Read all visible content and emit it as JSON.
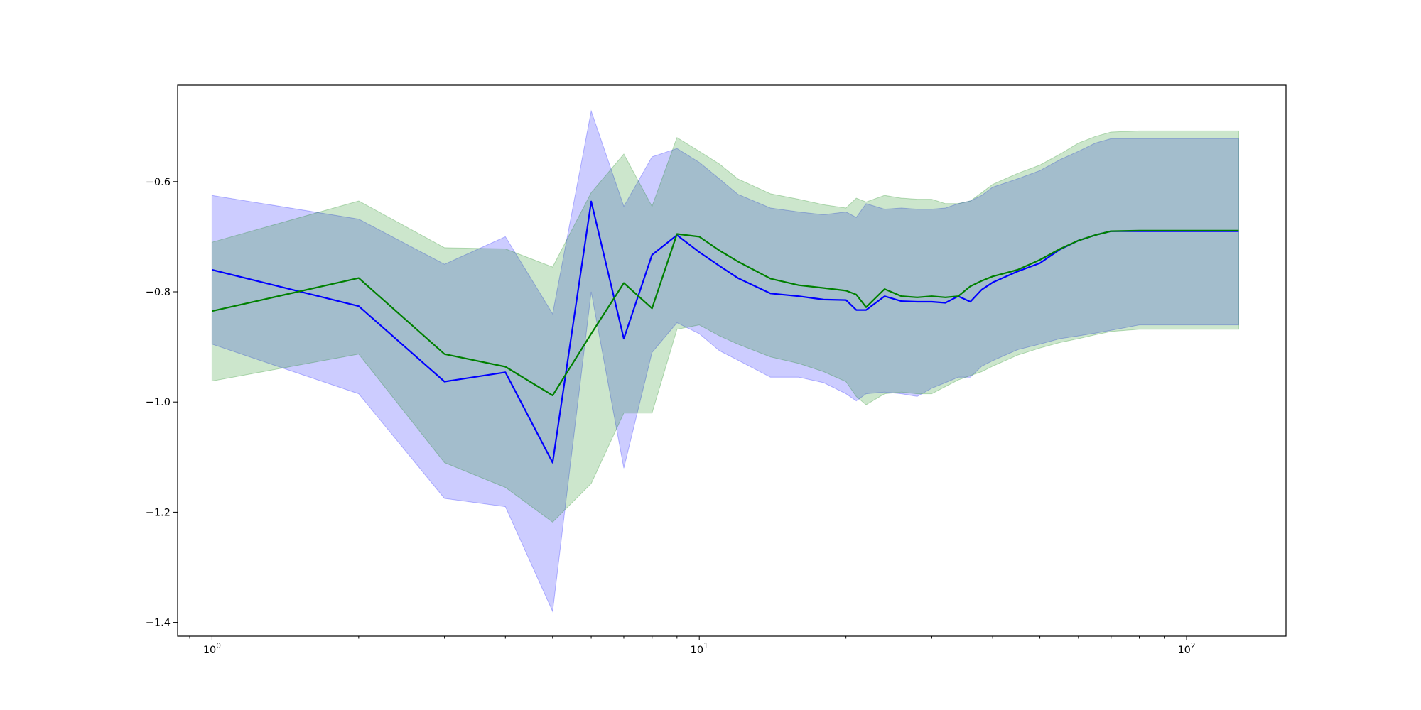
{
  "chart_data": {
    "type": "line",
    "x_scale": "log",
    "x_range": [
      0.85,
      160
    ],
    "y_range": [
      -1.425,
      -0.425
    ],
    "grid": false,
    "legend": "none",
    "x_ticks": [
      {
        "value": 1,
        "base": "10",
        "exp": "0"
      },
      {
        "value": 10,
        "base": "10",
        "exp": "1"
      },
      {
        "value": 100,
        "base": "10",
        "exp": "2"
      }
    ],
    "x_minor_ticks": [
      0.9,
      2,
      3,
      4,
      5,
      6,
      7,
      8,
      9,
      20,
      30,
      40,
      50,
      60,
      70,
      80,
      90
    ],
    "y_ticks": [
      {
        "value": -1.4,
        "label": "−1.4"
      },
      {
        "value": -1.2,
        "label": "−1.2"
      },
      {
        "value": -1.0,
        "label": "−1.0"
      },
      {
        "value": -0.8,
        "label": "−0.8"
      },
      {
        "value": -0.6,
        "label": "−0.6"
      }
    ],
    "x": [
      1,
      2,
      3,
      4,
      5,
      6,
      7,
      8,
      9,
      10,
      11,
      12,
      14,
      16,
      18,
      20,
      21,
      22,
      24,
      26,
      28,
      30,
      32,
      34,
      36,
      38,
      40,
      45,
      50,
      55,
      60,
      65,
      70,
      80,
      100,
      128
    ],
    "series": [
      {
        "color": "#0000ff",
        "band_color": "#0000ff",
        "band_opacity": 0.2,
        "values": [
          -0.76,
          -0.826,
          -0.963,
          -0.946,
          -1.11,
          -0.636,
          -0.885,
          -0.733,
          -0.697,
          -0.728,
          -0.753,
          -0.775,
          -0.803,
          -0.808,
          -0.814,
          -0.815,
          -0.833,
          -0.833,
          -0.808,
          -0.817,
          -0.818,
          -0.818,
          -0.82,
          -0.808,
          -0.818,
          -0.796,
          -0.783,
          -0.763,
          -0.748,
          -0.723,
          -0.707,
          -0.697,
          -0.69,
          -0.69,
          -0.69,
          -0.69
        ],
        "lower": [
          -0.895,
          -0.985,
          -1.175,
          -1.19,
          -1.38,
          -0.8,
          -1.12,
          -0.91,
          -0.856,
          -0.876,
          -0.907,
          -0.924,
          -0.955,
          -0.955,
          -0.965,
          -0.985,
          -0.998,
          -0.985,
          -0.982,
          -0.985,
          -0.99,
          -0.975,
          -0.965,
          -0.955,
          -0.955,
          -0.935,
          -0.925,
          -0.905,
          -0.895,
          -0.885,
          -0.88,
          -0.875,
          -0.87,
          -0.86,
          -0.86,
          -0.86
        ],
        "upper": [
          -0.625,
          -0.668,
          -0.75,
          -0.7,
          -0.84,
          -0.472,
          -0.645,
          -0.555,
          -0.54,
          -0.565,
          -0.595,
          -0.623,
          -0.648,
          -0.655,
          -0.66,
          -0.655,
          -0.665,
          -0.64,
          -0.65,
          -0.648,
          -0.65,
          -0.65,
          -0.648,
          -0.64,
          -0.635,
          -0.625,
          -0.61,
          -0.595,
          -0.58,
          -0.56,
          -0.545,
          -0.53,
          -0.522,
          -0.522,
          -0.522,
          -0.522
        ]
      },
      {
        "color": "#008000",
        "band_color": "#008000",
        "band_opacity": 0.2,
        "values": [
          -0.835,
          -0.775,
          -0.913,
          -0.936,
          -0.988,
          -0.876,
          -0.784,
          -0.83,
          -0.695,
          -0.7,
          -0.725,
          -0.745,
          -0.776,
          -0.788,
          -0.793,
          -0.798,
          -0.805,
          -0.828,
          -0.795,
          -0.808,
          -0.81,
          -0.808,
          -0.81,
          -0.808,
          -0.79,
          -0.78,
          -0.772,
          -0.76,
          -0.742,
          -0.722,
          -0.707,
          -0.697,
          -0.69,
          -0.689,
          -0.689,
          -0.689
        ],
        "lower": [
          -0.962,
          -0.913,
          -1.11,
          -1.155,
          -1.218,
          -1.148,
          -1.02,
          -1.02,
          -0.868,
          -0.86,
          -0.88,
          -0.895,
          -0.918,
          -0.93,
          -0.945,
          -0.963,
          -0.99,
          -1.005,
          -0.985,
          -0.982,
          -0.985,
          -0.985,
          -0.972,
          -0.96,
          -0.952,
          -0.945,
          -0.935,
          -0.915,
          -0.902,
          -0.892,
          -0.885,
          -0.878,
          -0.872,
          -0.868,
          -0.868,
          -0.868
        ],
        "upper": [
          -0.71,
          -0.635,
          -0.72,
          -0.722,
          -0.755,
          -0.62,
          -0.55,
          -0.645,
          -0.52,
          -0.545,
          -0.568,
          -0.595,
          -0.622,
          -0.632,
          -0.642,
          -0.648,
          -0.63,
          -0.637,
          -0.625,
          -0.63,
          -0.632,
          -0.632,
          -0.64,
          -0.64,
          -0.635,
          -0.62,
          -0.605,
          -0.585,
          -0.57,
          -0.55,
          -0.53,
          -0.518,
          -0.51,
          -0.508,
          -0.508,
          -0.508
        ]
      }
    ]
  }
}
